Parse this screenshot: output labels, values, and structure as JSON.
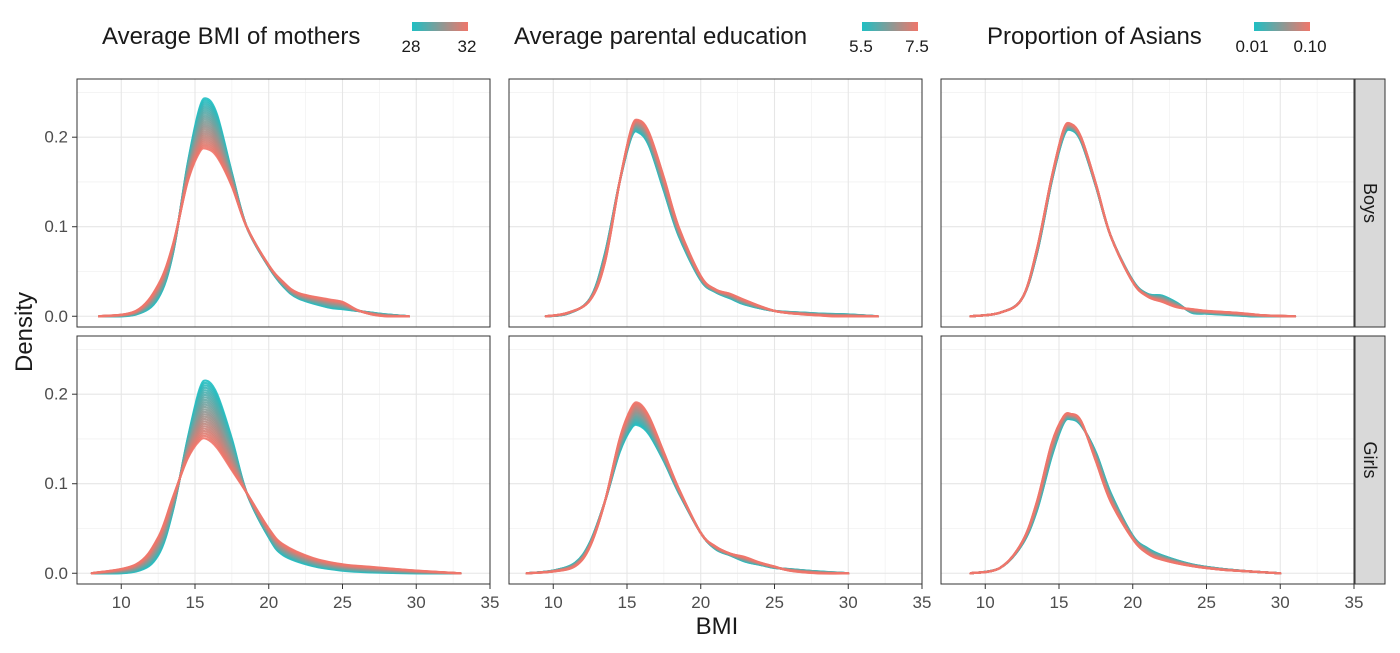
{
  "chart_data": {
    "type": "line",
    "chart_kind": "faceted density curves (small multiples)",
    "xlabel": "BMI",
    "ylabel": "Density",
    "xlim": [
      7,
      35
    ],
    "ylim": [
      -0.012,
      0.265
    ],
    "x_ticks": [
      "10",
      "15",
      "20",
      "25",
      "30",
      "35"
    ],
    "x_tick_values": [
      10,
      15,
      20,
      25,
      30,
      35
    ],
    "y_ticks": [
      "0.0",
      "0.1",
      "0.2"
    ],
    "y_tick_values": [
      0.0,
      0.1,
      0.2
    ],
    "grid": true,
    "legend_placement": "top (one gradient colorbar per column)",
    "colors": {
      "low": "#1fbfc3",
      "high": "#f0766a"
    },
    "rows": [
      "Boys",
      "Girls"
    ],
    "columns": [
      {
        "title": "Average BMI of mothers",
        "legend_min": "28",
        "legend_max": "32"
      },
      {
        "title": "Average parental education",
        "legend_min": "5.5",
        "legend_max": "7.5"
      },
      {
        "title": "Proportion of Asians",
        "legend_min": "0.01",
        "legend_max": "0.10"
      }
    ],
    "panels": [
      {
        "row": "Boys",
        "column": "Average BMI of mothers",
        "x_range": [
          8.5,
          29.5
        ],
        "low_curve": [
          [
            8.5,
            0
          ],
          [
            11,
            0.002
          ],
          [
            12.5,
            0.02
          ],
          [
            13.5,
            0.07
          ],
          [
            14.5,
            0.17
          ],
          [
            15.3,
            0.232
          ],
          [
            15.8,
            0.243
          ],
          [
            16.5,
            0.225
          ],
          [
            17.5,
            0.16
          ],
          [
            18.5,
            0.1
          ],
          [
            20,
            0.055
          ],
          [
            21,
            0.033
          ],
          [
            22,
            0.02
          ],
          [
            24,
            0.01
          ],
          [
            26,
            0.006
          ],
          [
            28,
            0.002
          ],
          [
            29.5,
            0
          ]
        ],
        "high_curve": [
          [
            8.5,
            0
          ],
          [
            11,
            0.006
          ],
          [
            12.5,
            0.035
          ],
          [
            13.5,
            0.08
          ],
          [
            14.5,
            0.15
          ],
          [
            15.3,
            0.183
          ],
          [
            15.8,
            0.187
          ],
          [
            16.5,
            0.178
          ],
          [
            17.5,
            0.145
          ],
          [
            18.5,
            0.1
          ],
          [
            20,
            0.057
          ],
          [
            21,
            0.038
          ],
          [
            22,
            0.026
          ],
          [
            24,
            0.019
          ],
          [
            25,
            0.016
          ],
          [
            26,
            0.007
          ],
          [
            27,
            0.002
          ],
          [
            28,
            0
          ],
          [
            29.5,
            0
          ]
        ]
      },
      {
        "row": "Boys",
        "column": "Average parental education",
        "x_range": [
          9.5,
          32
        ],
        "low_curve": [
          [
            9.5,
            0
          ],
          [
            11,
            0.003
          ],
          [
            12.5,
            0.02
          ],
          [
            13.5,
            0.07
          ],
          [
            14.5,
            0.15
          ],
          [
            15.3,
            0.2
          ],
          [
            15.8,
            0.205
          ],
          [
            16.5,
            0.19
          ],
          [
            17.5,
            0.14
          ],
          [
            18.5,
            0.09
          ],
          [
            20,
            0.04
          ],
          [
            21,
            0.027
          ],
          [
            22,
            0.02
          ],
          [
            23,
            0.013
          ],
          [
            25,
            0.006
          ],
          [
            28,
            0.003
          ],
          [
            30,
            0.002
          ],
          [
            32,
            0
          ]
        ],
        "high_curve": [
          [
            9.5,
            0
          ],
          [
            11,
            0.004
          ],
          [
            12.5,
            0.018
          ],
          [
            13.5,
            0.06
          ],
          [
            14.5,
            0.15
          ],
          [
            15.3,
            0.21
          ],
          [
            15.8,
            0.219
          ],
          [
            16.5,
            0.205
          ],
          [
            17.5,
            0.155
          ],
          [
            18.5,
            0.1
          ],
          [
            20,
            0.045
          ],
          [
            21,
            0.03
          ],
          [
            22,
            0.025
          ],
          [
            23,
            0.018
          ],
          [
            25,
            0.006
          ],
          [
            27,
            0.002
          ],
          [
            29,
            0
          ],
          [
            32,
            0
          ]
        ]
      },
      {
        "row": "Boys",
        "column": "Proportion of Asians",
        "x_range": [
          9,
          31
        ],
        "low_curve": [
          [
            9,
            0
          ],
          [
            11,
            0.004
          ],
          [
            12.5,
            0.02
          ],
          [
            13.5,
            0.07
          ],
          [
            14.5,
            0.15
          ],
          [
            15.3,
            0.2
          ],
          [
            15.8,
            0.208
          ],
          [
            16.5,
            0.195
          ],
          [
            17.5,
            0.145
          ],
          [
            18.5,
            0.09
          ],
          [
            20,
            0.04
          ],
          [
            21,
            0.025
          ],
          [
            22,
            0.023
          ],
          [
            23,
            0.015
          ],
          [
            24,
            0.004
          ],
          [
            26,
            0.002
          ],
          [
            28,
            0
          ],
          [
            31,
            0
          ]
        ],
        "high_curve": [
          [
            9,
            0
          ],
          [
            11,
            0.004
          ],
          [
            12.5,
            0.02
          ],
          [
            13.5,
            0.075
          ],
          [
            14.5,
            0.155
          ],
          [
            15.3,
            0.208
          ],
          [
            15.8,
            0.215
          ],
          [
            16.5,
            0.2
          ],
          [
            17.5,
            0.148
          ],
          [
            18.5,
            0.09
          ],
          [
            20,
            0.038
          ],
          [
            21,
            0.022
          ],
          [
            22,
            0.016
          ],
          [
            23,
            0.01
          ],
          [
            25,
            0.006
          ],
          [
            27,
            0.004
          ],
          [
            29,
            0.001
          ],
          [
            31,
            0
          ]
        ]
      },
      {
        "row": "Girls",
        "column": "Average BMI of mothers",
        "x_range": [
          8,
          33
        ],
        "low_curve": [
          [
            8,
            0
          ],
          [
            11,
            0.002
          ],
          [
            12.5,
            0.02
          ],
          [
            13.5,
            0.07
          ],
          [
            14.5,
            0.15
          ],
          [
            15.3,
            0.205
          ],
          [
            15.8,
            0.215
          ],
          [
            16.5,
            0.2
          ],
          [
            17.5,
            0.15
          ],
          [
            18.5,
            0.09
          ],
          [
            20,
            0.04
          ],
          [
            21,
            0.02
          ],
          [
            23,
            0.008
          ],
          [
            25,
            0.003
          ],
          [
            27,
            0.001
          ],
          [
            30,
            0
          ],
          [
            33,
            0
          ]
        ],
        "high_curve": [
          [
            8,
            0
          ],
          [
            11,
            0.01
          ],
          [
            12.5,
            0.04
          ],
          [
            13.5,
            0.085
          ],
          [
            14.5,
            0.128
          ],
          [
            15.3,
            0.148
          ],
          [
            15.8,
            0.15
          ],
          [
            16.5,
            0.14
          ],
          [
            17.5,
            0.115
          ],
          [
            18.5,
            0.09
          ],
          [
            20,
            0.05
          ],
          [
            21,
            0.032
          ],
          [
            23,
            0.017
          ],
          [
            25,
            0.01
          ],
          [
            27,
            0.007
          ],
          [
            30,
            0.003
          ],
          [
            33,
            0
          ]
        ]
      },
      {
        "row": "Girls",
        "column": "Average parental education",
        "x_range": [
          8.2,
          30
        ],
        "low_curve": [
          [
            8.2,
            0
          ],
          [
            10,
            0.003
          ],
          [
            11.5,
            0.012
          ],
          [
            12.5,
            0.035
          ],
          [
            13.5,
            0.08
          ],
          [
            14.5,
            0.135
          ],
          [
            15.3,
            0.162
          ],
          [
            15.8,
            0.165
          ],
          [
            16.5,
            0.155
          ],
          [
            17.5,
            0.125
          ],
          [
            18.5,
            0.09
          ],
          [
            20,
            0.045
          ],
          [
            21,
            0.027
          ],
          [
            22,
            0.02
          ],
          [
            23,
            0.013
          ],
          [
            25,
            0.006
          ],
          [
            28,
            0.002
          ],
          [
            30,
            0
          ]
        ],
        "high_curve": [
          [
            8.2,
            0
          ],
          [
            10,
            0.002
          ],
          [
            11.5,
            0.008
          ],
          [
            12.5,
            0.03
          ],
          [
            13.5,
            0.08
          ],
          [
            14.5,
            0.15
          ],
          [
            15.3,
            0.185
          ],
          [
            15.8,
            0.19
          ],
          [
            16.5,
            0.175
          ],
          [
            17.5,
            0.135
          ],
          [
            18.5,
            0.095
          ],
          [
            20,
            0.045
          ],
          [
            21,
            0.03
          ],
          [
            22,
            0.022
          ],
          [
            23,
            0.018
          ],
          [
            24,
            0.012
          ],
          [
            26,
            0.003
          ],
          [
            28,
            0
          ],
          [
            30,
            0
          ]
        ]
      },
      {
        "row": "Girls",
        "column": "Proportion of Asians",
        "x_range": [
          9,
          30
        ],
        "low_curve": [
          [
            9,
            0
          ],
          [
            11,
            0.006
          ],
          [
            12.5,
            0.032
          ],
          [
            13.5,
            0.07
          ],
          [
            14.5,
            0.13
          ],
          [
            15.3,
            0.167
          ],
          [
            15.8,
            0.172
          ],
          [
            16.5,
            0.165
          ],
          [
            17.5,
            0.135
          ],
          [
            18.5,
            0.09
          ],
          [
            20,
            0.042
          ],
          [
            21,
            0.028
          ],
          [
            22,
            0.02
          ],
          [
            24,
            0.01
          ],
          [
            26,
            0.005
          ],
          [
            28,
            0.002
          ],
          [
            30,
            0
          ]
        ],
        "high_curve": [
          [
            9,
            0
          ],
          [
            11,
            0.006
          ],
          [
            12.5,
            0.035
          ],
          [
            13.5,
            0.08
          ],
          [
            14.5,
            0.145
          ],
          [
            15.3,
            0.175
          ],
          [
            15.8,
            0.178
          ],
          [
            16.5,
            0.17
          ],
          [
            17.5,
            0.125
          ],
          [
            18.5,
            0.08
          ],
          [
            20,
            0.038
          ],
          [
            21,
            0.022
          ],
          [
            22,
            0.015
          ],
          [
            24,
            0.008
          ],
          [
            26,
            0.004
          ],
          [
            28,
            0.002
          ],
          [
            30,
            0
          ]
        ]
      }
    ]
  }
}
